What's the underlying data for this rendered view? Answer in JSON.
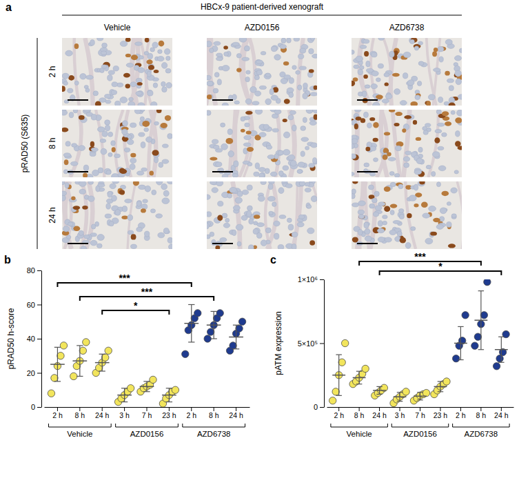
{
  "panel_a": {
    "label": "a",
    "title": "HBCx-9 patient-derived xenograft",
    "columns": [
      "Vehicle",
      "AZD0156",
      "AZD6738"
    ],
    "rows": [
      "2 h",
      "8 h",
      "24 h"
    ],
    "stain": "pRAD50 (S635)"
  },
  "chart_data": [
    {
      "label": "b",
      "type": "scatter",
      "y_label": "pRAD50 h-score",
      "categories": [
        "2 h",
        "8 h",
        "24 h",
        "3 h",
        "7 h",
        "23 h",
        "2 h",
        "8 h",
        "24 h"
      ],
      "groups": [
        {
          "name": "Vehicle",
          "from": 0,
          "to": 2
        },
        {
          "name": "AZD0156",
          "from": 3,
          "to": 5
        },
        {
          "name": "AZD6738",
          "from": 6,
          "to": 8
        }
      ],
      "colors": [
        "#f2e55c",
        "#f2e55c",
        "#f2e55c",
        "#f2e55c",
        "#f2e55c",
        "#f2e55c",
        "#1f3b8f",
        "#1f3b8f",
        "#1f3b8f"
      ],
      "points": [
        [
          8,
          17,
          24,
          30,
          36
        ],
        [
          18,
          24,
          27,
          33,
          38
        ],
        [
          20,
          23,
          26,
          29,
          33
        ],
        [
          3,
          5,
          7,
          9,
          11
        ],
        [
          9,
          11,
          12,
          13,
          16
        ],
        [
          2,
          5,
          7,
          9,
          10
        ],
        [
          31,
          45,
          48,
          52,
          55
        ],
        [
          40,
          44,
          48,
          52,
          55
        ],
        [
          33,
          36,
          43,
          46,
          50
        ]
      ],
      "means": [
        25,
        27,
        26,
        7,
        12,
        7,
        49,
        48,
        41
      ],
      "errors": [
        10,
        9,
        5,
        4,
        3,
        4,
        11,
        8,
        7
      ],
      "ylim": [
        0,
        80
      ],
      "yticks": [
        0,
        20,
        40,
        60,
        80
      ],
      "significance": [
        {
          "from": 0,
          "to": 6,
          "label": "***"
        },
        {
          "from": 1,
          "to": 7,
          "label": "***"
        },
        {
          "from": 2,
          "to": 5,
          "label": "*"
        }
      ]
    },
    {
      "label": "c",
      "type": "scatter",
      "y_label": "pATM expression",
      "categories": [
        "2 h",
        "8 h",
        "24 h",
        "3 h",
        "7 h",
        "23 h",
        "2 h",
        "8 h",
        "24 h"
      ],
      "groups": [
        {
          "name": "Vehicle",
          "from": 0,
          "to": 2
        },
        {
          "name": "AZD0156",
          "from": 3,
          "to": 5
        },
        {
          "name": "AZD6738",
          "from": 6,
          "to": 8
        }
      ],
      "colors": [
        "#f2e55c",
        "#f2e55c",
        "#f2e55c",
        "#f2e55c",
        "#f2e55c",
        "#f2e55c",
        "#1f3b8f",
        "#1f3b8f",
        "#1f3b8f"
      ],
      "points": [
        [
          50000,
          120000,
          250000,
          350000,
          500000
        ],
        [
          180000,
          200000,
          230000,
          260000,
          300000
        ],
        [
          90000,
          110000,
          130000,
          150000
        ],
        [
          30000,
          60000,
          80000,
          100000,
          120000
        ],
        [
          50000,
          70000,
          90000,
          100000,
          110000
        ],
        [
          100000,
          130000,
          160000,
          180000,
          200000
        ],
        [
          380000,
          480000,
          520000,
          720000
        ],
        [
          480000,
          550000,
          650000,
          720000,
          980000
        ],
        [
          320000,
          380000,
          430000,
          570000
        ]
      ],
      "means": [
        250000,
        230000,
        130000,
        80000,
        85000,
        160000,
        500000,
        680000,
        450000
      ],
      "errors": [
        160000,
        50000,
        30000,
        35000,
        30000,
        40000,
        130000,
        230000,
        100000
      ],
      "ylim": [
        0,
        1000000
      ],
      "yticks": [
        0,
        {
          "value": 500000,
          "label": "5×10⁵"
        },
        {
          "value": 1000000,
          "label": "1×10⁶"
        }
      ],
      "significance": [
        {
          "from": 1,
          "to": 7,
          "label": "***"
        },
        {
          "from": 2,
          "to": 8,
          "label": "*"
        }
      ]
    }
  ]
}
